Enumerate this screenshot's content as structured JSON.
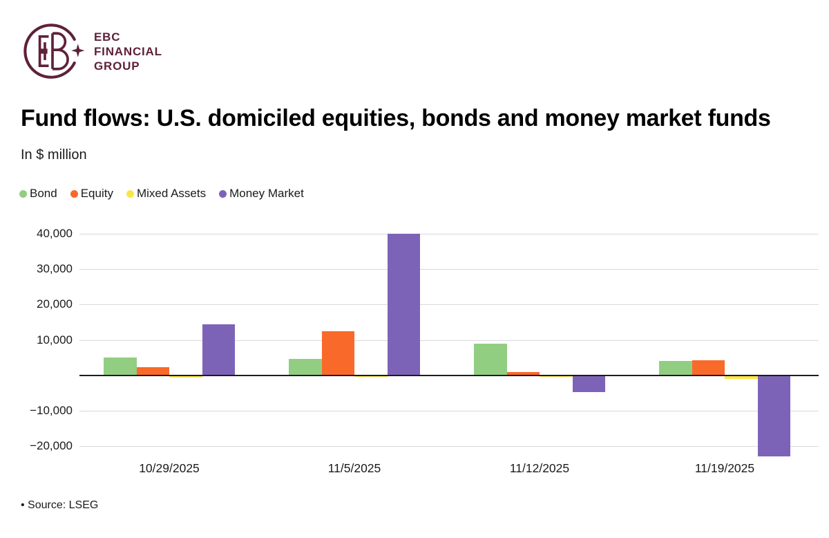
{
  "brand": {
    "line1": "EBC",
    "line2": "FINANCIAL",
    "line3": "GROUP",
    "logo_color": "#5E2139"
  },
  "title": "Fund flows: U.S. domiciled equities, bonds and money market funds",
  "subtitle": "In $ million",
  "source": "• Source: LSEG",
  "colors": {
    "bond": "#92CE82",
    "equity": "#F9692A",
    "mixed_assets": "#FBE54B",
    "money_market": "#7D63B8",
    "gridline": "#d9d9d9",
    "zero_line": "#1c1c1c",
    "logo": "#5E2139"
  },
  "chart_data": {
    "type": "bar",
    "title": "Fund flows: U.S. domiciled equities, bonds and money market funds",
    "xlabel": "",
    "ylabel": "In $ million",
    "categories": [
      "10/29/2025",
      "11/5/2025",
      "11/12/2025",
      "11/19/2025"
    ],
    "series": [
      {
        "name": "Bond",
        "color": "#92CE82",
        "values": [
          5000,
          4700,
          9000,
          4000
        ]
      },
      {
        "name": "Equity",
        "color": "#F9692A",
        "values": [
          2300,
          12400,
          1000,
          4300
        ]
      },
      {
        "name": "Mixed Assets",
        "color": "#FBE54B",
        "values": [
          -700,
          -500,
          -500,
          -1000
        ]
      },
      {
        "name": "Money Market",
        "color": "#7D63B8",
        "values": [
          14500,
          40000,
          -4700,
          -23000
        ]
      }
    ],
    "ylim": [
      -20000,
      40000
    ],
    "yticks": [
      40000,
      30000,
      20000,
      10000,
      -10000,
      -20000
    ],
    "ytick_labels": [
      "40,000",
      "30,000",
      "20,000",
      "10,000",
      "−10,000",
      "−20,000"
    ],
    "grid": true,
    "legend_position": "top-left",
    "source": "Source: LSEG"
  }
}
